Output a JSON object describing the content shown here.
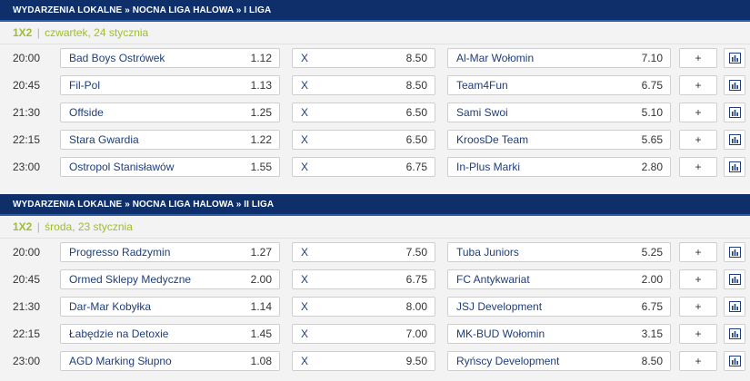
{
  "sections": [
    {
      "breadcrumb": "WYDARZENIA LOKALNE » NOCNA LIGA HALOWA » I LIGA",
      "market": "1X2",
      "separator": "|",
      "date": "czwartek, 24 stycznia",
      "matches": [
        {
          "time": "20:00",
          "home": "Bad Boys Ostrówek",
          "home_odd": "1.12",
          "draw_label": "X",
          "draw_odd": "8.50",
          "away": "Al-Mar Wołomin",
          "away_odd": "7.10",
          "more": "+"
        },
        {
          "time": "20:45",
          "home": "Fil-Pol",
          "home_odd": "1.13",
          "draw_label": "X",
          "draw_odd": "8.50",
          "away": "Team4Fun",
          "away_odd": "6.75",
          "more": "+"
        },
        {
          "time": "21:30",
          "home": "Offside",
          "home_odd": "1.25",
          "draw_label": "X",
          "draw_odd": "6.50",
          "away": "Sami Swoi",
          "away_odd": "5.10",
          "more": "+"
        },
        {
          "time": "22:15",
          "home": "Stara Gwardia",
          "home_odd": "1.22",
          "draw_label": "X",
          "draw_odd": "6.50",
          "away": "KroosDe Team",
          "away_odd": "5.65",
          "more": "+"
        },
        {
          "time": "23:00",
          "home": "Ostropol Stanisławów",
          "home_odd": "1.55",
          "draw_label": "X",
          "draw_odd": "6.75",
          "away": "In-Plus Marki",
          "away_odd": "2.80",
          "more": "+"
        }
      ]
    },
    {
      "breadcrumb": "WYDARZENIA LOKALNE » NOCNA LIGA HALOWA » II LIGA",
      "market": "1X2",
      "separator": "|",
      "date": "środa, 23 stycznia",
      "matches": [
        {
          "time": "20:00",
          "home": "Progresso Radzymin",
          "home_odd": "1.27",
          "draw_label": "X",
          "draw_odd": "7.50",
          "away": "Tuba Juniors",
          "away_odd": "5.25",
          "more": "+"
        },
        {
          "time": "20:45",
          "home": "Ormed Sklepy Medyczne",
          "home_odd": "2.00",
          "draw_label": "X",
          "draw_odd": "6.75",
          "away": "FC Antykwariat",
          "away_odd": "2.00",
          "more": "+"
        },
        {
          "time": "21:30",
          "home": "Dar-Mar Kobyłka",
          "home_odd": "1.14",
          "draw_label": "X",
          "draw_odd": "8.00",
          "away": "JSJ Development",
          "away_odd": "6.75",
          "more": "+"
        },
        {
          "time": "22:15",
          "home": "Łabędzie na Detoxie",
          "home_odd": "1.45",
          "draw_label": "X",
          "draw_odd": "7.00",
          "away": "MK-BUD Wołomin",
          "away_odd": "3.15",
          "more": "+"
        },
        {
          "time": "23:00",
          "home": "AGD Marking Słupno",
          "home_odd": "1.08",
          "draw_label": "X",
          "draw_odd": "9.50",
          "away": "Ryńscy Development",
          "away_odd": "8.50",
          "more": "+"
        }
      ]
    }
  ],
  "icons": {
    "stats": "bar-chart-icon"
  },
  "colors": {
    "header": "#0f2f6a",
    "market": "#9fbe2e",
    "stats_icon": "#1f3d7a"
  }
}
